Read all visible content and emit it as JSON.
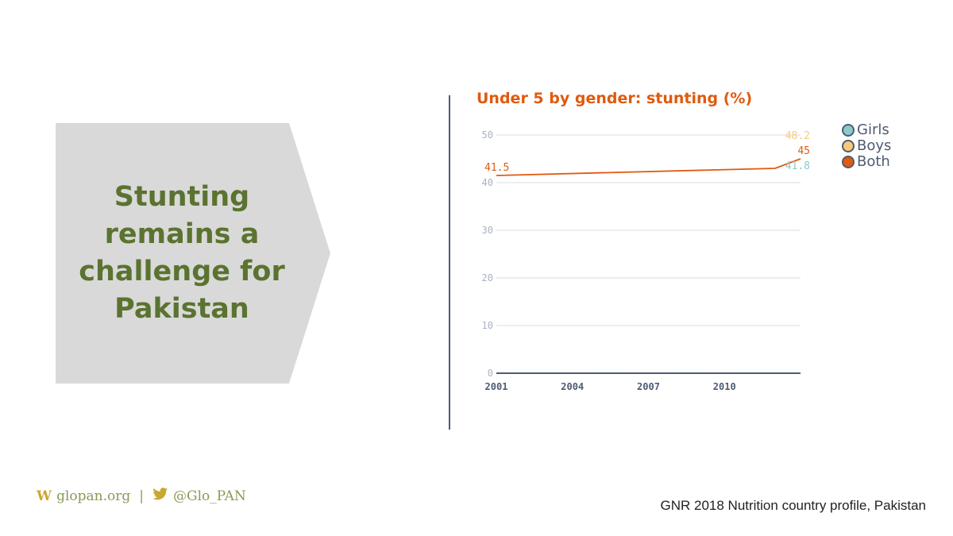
{
  "callout": {
    "title": "Stunting remains a challenge for Pakistan"
  },
  "footer": {
    "website": "glopan.org",
    "separator": "|",
    "twitter": "@Glo_PAN",
    "logo_letter": "W"
  },
  "source": "GNR 2018 Nutrition country profile, Pakistan",
  "colors": {
    "girls": "#8dc9c9",
    "boys": "#f7c97a",
    "both": "#e05a0f",
    "title": "#e05a0f",
    "callout_text": "#5b7330",
    "callout_bg": "#d9d9d9",
    "axis": "#4e5c72"
  },
  "chart_data": {
    "type": "line",
    "title": "Under 5 by gender: stunting (%)",
    "xlabel": "",
    "ylabel": "",
    "ylim": [
      0,
      50
    ],
    "yticks": [
      0,
      10,
      20,
      30,
      40,
      50
    ],
    "xlim": [
      2001,
      2013
    ],
    "xticks": [
      2001,
      2004,
      2007,
      2010
    ],
    "grid": true,
    "legend_position": "top-right",
    "series": [
      {
        "name": "Girls",
        "color": "#8dc9c9",
        "x": [
          2013
        ],
        "y": [
          41.8
        ],
        "labels": [
          "41.8"
        ]
      },
      {
        "name": "Boys",
        "color": "#f7c97a",
        "x": [
          2013
        ],
        "y": [
          48.2
        ],
        "labels": [
          "48.2"
        ]
      },
      {
        "name": "Both",
        "color": "#e05a0f",
        "x": [
          2001,
          2012,
          2013
        ],
        "y": [
          41.5,
          43,
          45
        ],
        "labels": [
          "41.5",
          "",
          "45"
        ]
      }
    ]
  },
  "icons": {
    "twitter": "bird-icon"
  }
}
